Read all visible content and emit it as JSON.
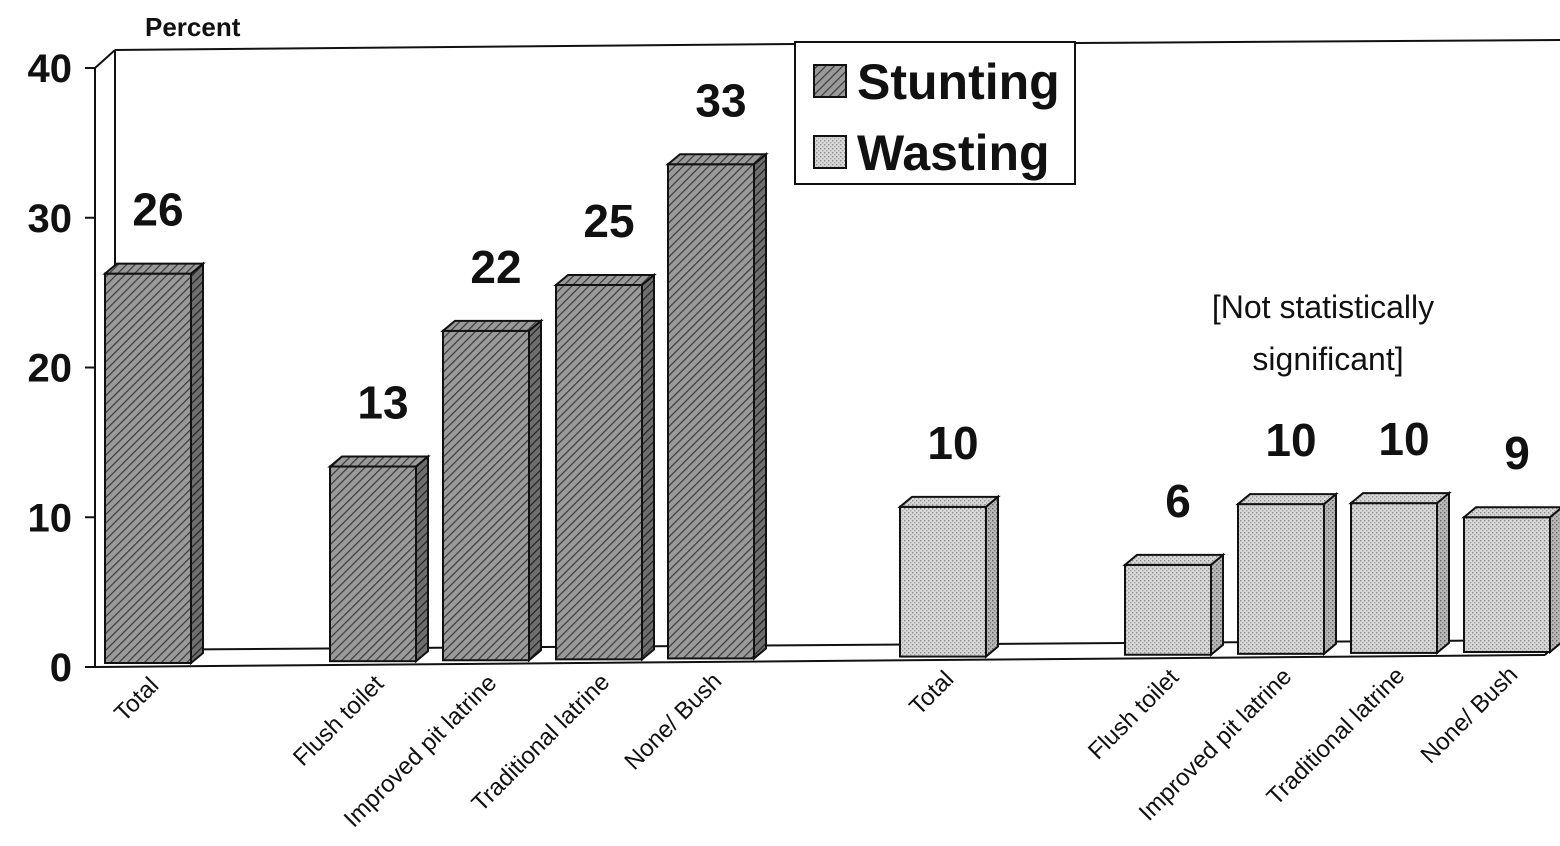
{
  "chart_data": {
    "type": "bar",
    "ylabel": "Percent",
    "ylim": [
      0,
      40
    ],
    "yticks": [
      "0",
      "10",
      "20",
      "30",
      "40"
    ],
    "grid": false,
    "legend_position": "top-center",
    "series": [
      {
        "name": "Stunting",
        "color": "#8a8a8a",
        "pattern": "diagonal-hatch",
        "categories": [
          "Total",
          "Flush toilet",
          "Improved pit latrine",
          "Traditional latrine",
          "None/ Bush"
        ],
        "values": [
          26,
          13,
          22,
          25,
          33
        ],
        "value_labels": [
          "26",
          "13",
          "22",
          "25",
          "33"
        ]
      },
      {
        "name": "Wasting",
        "color": "#cfcfcf",
        "pattern": "fine-dots",
        "categories": [
          "Total",
          "Flush toilet",
          "Improved pit latrine",
          "Traditional latrine",
          "None/ Bush"
        ],
        "values": [
          10,
          6,
          10,
          10,
          9
        ],
        "value_labels": [
          "10",
          "6",
          "10",
          "10",
          "9"
        ]
      }
    ],
    "annotations": [
      "[Not statistically",
      "significant]"
    ]
  }
}
